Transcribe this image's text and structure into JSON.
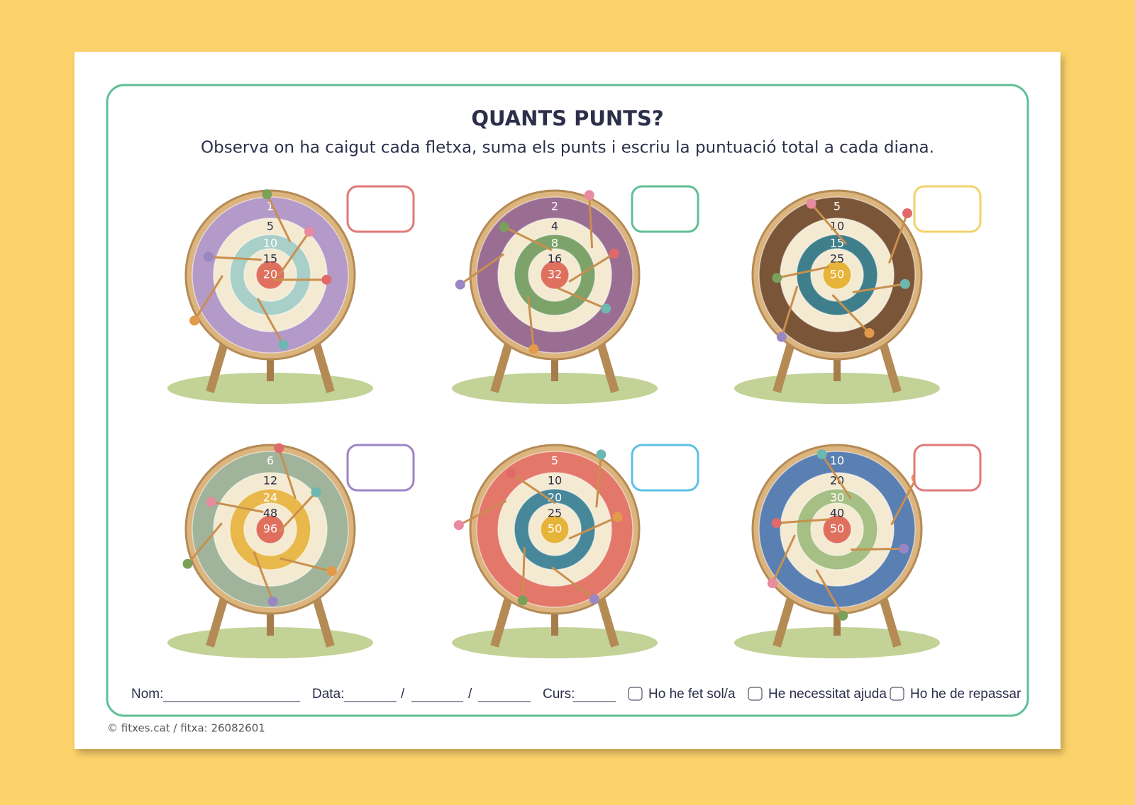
{
  "header": {
    "title": "QUANTS PUNTS?",
    "instruction": "Observa on ha caigut cada fletxa, suma els punts i escriu la puntuació total a cada diana."
  },
  "targets": [
    {
      "rings": [
        1,
        5,
        10,
        15,
        20
      ],
      "colors": [
        "#b49ac8",
        "#a9cfc9",
        "#e0705e"
      ],
      "box_color": "#e07a78"
    },
    {
      "rings": [
        2,
        4,
        8,
        16,
        32
      ],
      "colors": [
        "#9a6e92",
        "#7da36a",
        "#e0705e"
      ],
      "box_color": "#5fbf95"
    },
    {
      "rings": [
        5,
        10,
        15,
        25,
        50
      ],
      "colors": [
        "#7a5538",
        "#3f7f8c",
        "#e7b43a"
      ],
      "box_color": "#f1d36c"
    },
    {
      "rings": [
        6,
        12,
        24,
        48,
        96
      ],
      "colors": [
        "#9fb49a",
        "#e8b84a",
        "#e0705e"
      ],
      "box_color": "#9b86c4"
    },
    {
      "rings": [
        5,
        10,
        20,
        25,
        50
      ],
      "colors": [
        "#e3786a",
        "#46889a",
        "#e7b43a"
      ],
      "box_color": "#5cc0e6"
    },
    {
      "rings": [
        10,
        20,
        30,
        40,
        50
      ],
      "colors": [
        "#5a7fb3",
        "#a6bf84",
        "#e0705e"
      ],
      "box_color": "#e07a78"
    }
  ],
  "footer": {
    "name_label": "Nom:",
    "date_label": "Data:",
    "date_separators": [
      "/",
      "/"
    ],
    "course_label": "Curs:",
    "checks": [
      "Ho he fet sol/a",
      "He necessitat ajuda",
      "Ho he de repassar"
    ]
  },
  "copyright": "© fitxes.cat / fitxa: 26082601"
}
